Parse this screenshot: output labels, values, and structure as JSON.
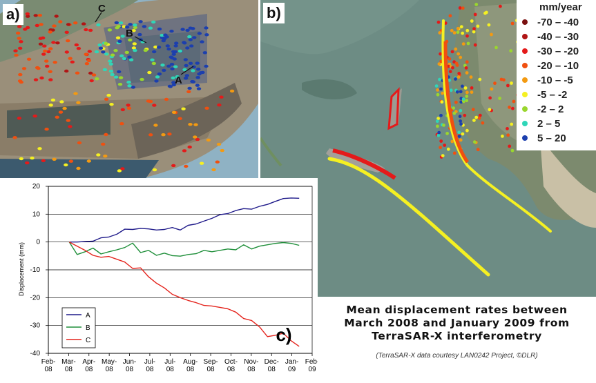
{
  "panels": {
    "a_label": "a)",
    "b_label": "b)",
    "c_label": "c)"
  },
  "photo_a": {
    "points": [
      "A",
      "B",
      "C"
    ]
  },
  "legend": {
    "title": "mm/year",
    "items": [
      {
        "label": "-70 – -40",
        "color": "#7a1010"
      },
      {
        "label": "-40 – -30",
        "color": "#b01515"
      },
      {
        "label": "-30 – -20",
        "color": "#e41a1a"
      },
      {
        "label": "-20 – -10",
        "color": "#f05010"
      },
      {
        "label": "-10 – -5",
        "color": "#f39a12"
      },
      {
        "label": "-5 – -2",
        "color": "#f5f022"
      },
      {
        "label": "-2 – 2",
        "color": "#9ad62e"
      },
      {
        "label": "2 – 5",
        "color": "#2fd6b8"
      },
      {
        "label": "5 – 20",
        "color": "#1c3fae"
      }
    ]
  },
  "caption": {
    "lines": [
      "Mean displacement rates between",
      "March 2008 and January 2009 from",
      "TerraSAR-X interferometry"
    ],
    "credit": "(TerraSAR-X data courtesy LAN0242 Project, ©DLR)"
  },
  "chart_data": {
    "type": "line",
    "ylabel": "Displacement (mm)",
    "xlabel": "",
    "ylim": [
      -40,
      20
    ],
    "yticks": [
      20,
      10,
      0,
      -10,
      -20,
      -30,
      -40
    ],
    "grid": true,
    "legend_position": "bottom-left",
    "x_ticks": [
      [
        "Feb-",
        "08"
      ],
      [
        "Mar-",
        "08"
      ],
      [
        "Apr-",
        "08"
      ],
      [
        "May-",
        "08"
      ],
      [
        "Jun-",
        "08"
      ],
      [
        "Jul-",
        "08"
      ],
      [
        "Jul-",
        "08"
      ],
      [
        "Aug-",
        "08"
      ],
      [
        "Sep-",
        "08"
      ],
      [
        "Oct-",
        "08"
      ],
      [
        "Nov-",
        "08"
      ],
      [
        "Dec-",
        "08"
      ],
      [
        "Jan-",
        "09"
      ],
      [
        "Feb-",
        "09"
      ]
    ],
    "x_dates": [
      "2008-03-01",
      "2008-03-12",
      "2008-03-23",
      "2008-04-03",
      "2008-04-14",
      "2008-04-25",
      "2008-05-06",
      "2008-05-17",
      "2008-05-28",
      "2008-06-08",
      "2008-06-19",
      "2008-06-30",
      "2008-07-11",
      "2008-07-22",
      "2008-08-02",
      "2008-08-13",
      "2008-08-24",
      "2008-09-04",
      "2008-09-15",
      "2008-09-26",
      "2008-10-07",
      "2008-10-18",
      "2008-10-29",
      "2008-11-09",
      "2008-11-20",
      "2008-12-01",
      "2008-12-12",
      "2008-12-23",
      "2009-01-03",
      "2009-01-14"
    ],
    "series": [
      {
        "name": "A",
        "color": "#1f1a8a",
        "values": [
          0,
          0,
          0.2,
          0.3,
          1.5,
          1.8,
          2.8,
          4.6,
          4.5,
          4.9,
          4.7,
          4.3,
          4.5,
          5.2,
          4.3,
          6.0,
          6.5,
          7.5,
          8.5,
          9.8,
          10.2,
          11.3,
          12.0,
          11.8,
          12.8,
          13.5,
          14.6,
          15.6,
          15.8,
          15.7
        ]
      },
      {
        "name": "B",
        "color": "#1f8f3a",
        "values": [
          0,
          -4.5,
          -3.5,
          -2.2,
          -4.3,
          -3.5,
          -2.8,
          -2.0,
          -0.4,
          -3.8,
          -3.0,
          -4.8,
          -4.0,
          -4.9,
          -5.1,
          -4.5,
          -4.2,
          -3.0,
          -3.5,
          -3.0,
          -2.5,
          -2.8,
          -1.0,
          -2.5,
          -1.5,
          -1.0,
          -0.5,
          -0.2,
          -0.5,
          -1.2
        ]
      },
      {
        "name": "C",
        "color": "#e4231c",
        "values": [
          0,
          -1.5,
          -3.0,
          -4.8,
          -5.5,
          -5.2,
          -6.2,
          -7.2,
          -9.5,
          -9.3,
          -12.5,
          -14.8,
          -16.5,
          -18.8,
          -20.0,
          -21.0,
          -21.8,
          -22.8,
          -23.0,
          -23.5,
          -24.0,
          -25.2,
          -27.5,
          -28.2,
          -30.5,
          -34.0,
          -33.5,
          -32.8,
          -35.5,
          -37.5
        ]
      }
    ]
  }
}
